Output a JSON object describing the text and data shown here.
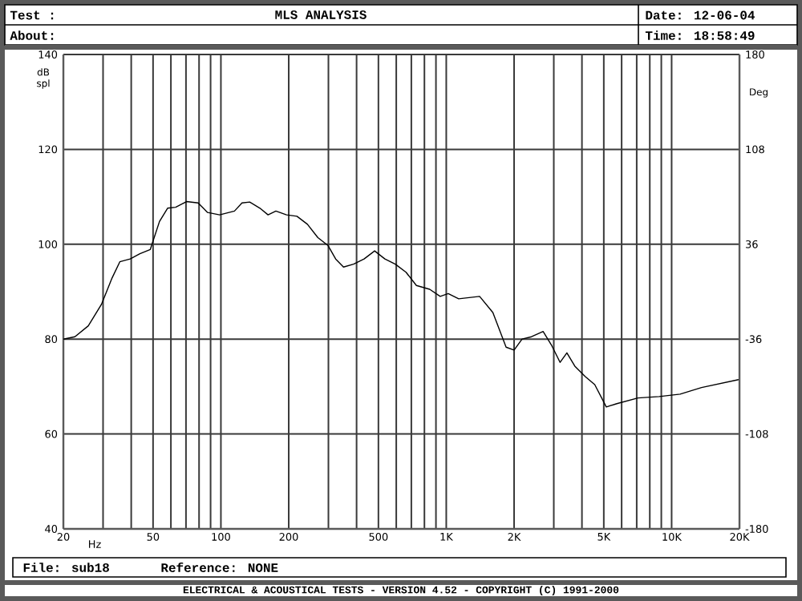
{
  "chart_data": {
    "type": "line",
    "title": "MLS ANALYSIS",
    "xlabel": "Hz",
    "ylabel": "dB spl",
    "y2label": "Deg",
    "annotations": [
      "Test :",
      "About:",
      "Date: 12-06-04",
      "Time: 18:58:49",
      "File: sub18",
      "Reference: NONE",
      "ELECTRICAL & ACOUSTICAL TESTS - VERSION 4.52 - COPYRIGHT (C) 1991-2000"
    ],
    "log": "x",
    "grid": true,
    "marker": "none",
    "line_style": "solid",
    "xlim": [
      20,
      20000
    ],
    "xticks": [
      20,
      {
        "value": 30,
        "label": null
      },
      {
        "value": 40,
        "label": null
      },
      50,
      {
        "value": 60,
        "label": null
      },
      {
        "value": 70,
        "label": null
      },
      {
        "value": 80,
        "label": null
      },
      {
        "value": 90,
        "label": null
      },
      100,
      200,
      {
        "value": 300,
        "label": null
      },
      {
        "value": 400,
        "label": null
      },
      500,
      {
        "value": 600,
        "label": null
      },
      {
        "value": 700,
        "label": null
      },
      {
        "value": 800,
        "label": null
      },
      {
        "value": 900,
        "label": null
      },
      {
        "value": 1000,
        "label": "1K"
      },
      {
        "value": 2000,
        "label": "2K"
      },
      {
        "value": 3000,
        "label": null
      },
      {
        "value": 4000,
        "label": null
      },
      {
        "value": 5000,
        "label": "5K"
      },
      {
        "value": 6000,
        "label": null
      },
      {
        "value": 7000,
        "label": null
      },
      {
        "value": 8000,
        "label": null
      },
      {
        "value": 9000,
        "label": null
      },
      {
        "value": 10000,
        "label": "10K"
      },
      {
        "value": 20000,
        "label": "20K"
      }
    ],
    "ylim": [
      40,
      140
    ],
    "yticks": [
      40,
      60,
      80,
      100,
      120,
      140
    ],
    "y2lim": [
      -180,
      180
    ],
    "y2ticks": [
      -180,
      -108,
      -36,
      36,
      108,
      180
    ],
    "series": [
      {
        "color": "#000000",
        "x": [
          20,
          22.5,
          25.8,
          29.5,
          32.9,
          35.6,
          39.6,
          43.7,
          48.6,
          53.4,
          58,
          63,
          70.4,
          79.3,
          87.3,
          98.7,
          114.9,
          124,
          134.2,
          149,
          161.9,
          175.4,
          195.6,
          217.5,
          242.1,
          269.3,
          299.1,
          323,
          350,
          388,
          432,
          481,
          534,
          594,
          663,
          737,
          844,
          940,
          1020,
          1135,
          1406,
          1610,
          1843,
          2000,
          2170,
          2390,
          2690,
          2925,
          3200,
          3430,
          3720,
          4140,
          4560,
          5130,
          5710,
          7090,
          8800,
          10900,
          13570,
          20000
        ],
        "values": [
          80.0,
          80.5,
          82.8,
          87.3,
          92.9,
          96.3,
          96.9,
          98.0,
          98.9,
          104.8,
          107.6,
          107.8,
          109.0,
          108.7,
          106.7,
          106.2,
          107.0,
          108.7,
          108.9,
          107.6,
          106.2,
          107.0,
          106.2,
          105.9,
          104.2,
          101.4,
          99.7,
          96.9,
          95.2,
          95.8,
          96.9,
          98.6,
          96.9,
          95.8,
          94.1,
          91.3,
          90.5,
          89.0,
          89.6,
          88.5,
          89.0,
          85.6,
          78.3,
          77.7,
          80.0,
          80.5,
          81.6,
          78.8,
          75.1,
          77.1,
          74.3,
          72.1,
          70.4,
          65.7,
          66.4,
          67.6,
          67.9,
          68.4,
          69.8,
          71.5
        ]
      }
    ]
  }
}
